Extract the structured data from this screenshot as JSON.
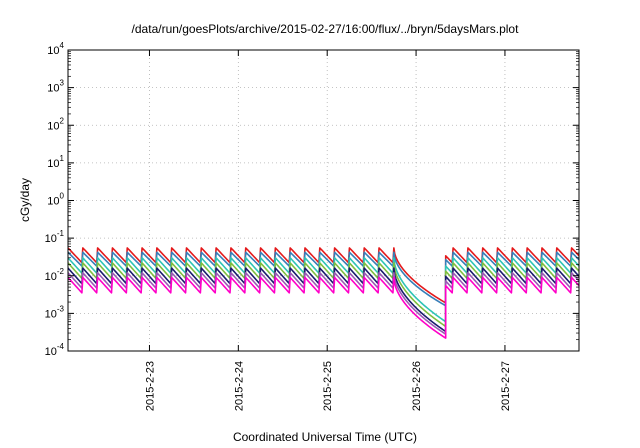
{
  "chart_data": {
    "type": "line",
    "title": "/data/run/goesPlots/archive/2015-02-27/16:00/flux/../bryn/5daysMars.plot",
    "xlabel": "Coordinated Universal Time (UTC)",
    "ylabel": "cGy/day",
    "yscale": "log",
    "ylim": [
      0.0001,
      10000
    ],
    "xlim": [
      "2015-02-22 02:00",
      "2015-02-27 20:00"
    ],
    "grid": true,
    "legend": "none",
    "x_ticks": [
      "2015-2-23",
      "2015-2-24",
      "2015-2-25",
      "2015-2-26",
      "2015-2-27"
    ],
    "y_ticks": [
      {
        "base": "10",
        "exp": "-4"
      },
      {
        "base": "10",
        "exp": "-3"
      },
      {
        "base": "10",
        "exp": "-2"
      },
      {
        "base": "10",
        "exp": "-1"
      },
      {
        "base": "10",
        "exp": "0"
      },
      {
        "base": "10",
        "exp": "1"
      },
      {
        "base": "10",
        "exp": "2"
      },
      {
        "base": "10",
        "exp": "3"
      },
      {
        "base": "10",
        "exp": "4"
      }
    ],
    "pattern": {
      "sawtooth_period_hours": 4,
      "gap_start": "2015-02-25 18:00",
      "gap_end": "2015-02-26 08:00"
    },
    "series": [
      {
        "color": "#e41a1c",
        "peak": 0.055,
        "base": 0.021,
        "gap_end_value": 0.0019
      },
      {
        "color": "#377eb8",
        "peak": 0.042,
        "base": 0.017,
        "gap_end_value": 0.0016
      },
      {
        "color": "#2ec4b6",
        "peak": 0.03,
        "base": 0.011,
        "gap_end_value": 0.0006
      },
      {
        "color": "#7fbf3f",
        "peak": 0.022,
        "base": 0.008,
        "gap_end_value": 0.00045
      },
      {
        "color": "#1a1a6e",
        "peak": 0.016,
        "base": 0.0058,
        "gap_end_value": 0.00033
      },
      {
        "color": "#9b59b6",
        "peak": 0.012,
        "base": 0.0044,
        "gap_end_value": 0.00028
      },
      {
        "color": "#ff00c8",
        "peak": 0.009,
        "base": 0.0033,
        "gap_end_value": 0.00022
      }
    ]
  }
}
